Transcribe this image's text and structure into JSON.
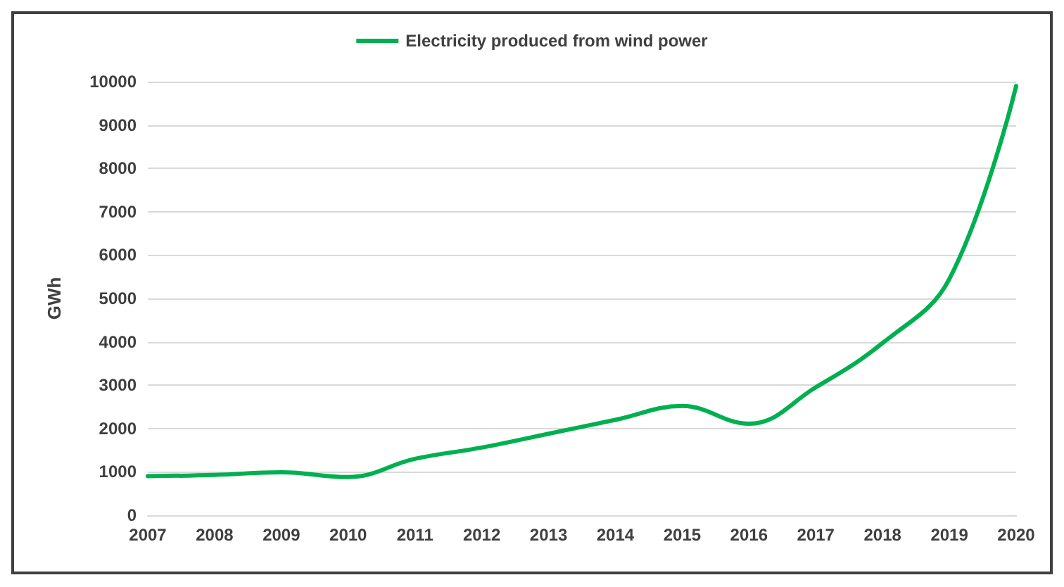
{
  "chart_data": {
    "type": "line",
    "ylabel": "GWh",
    "categories": [
      "2007",
      "2008",
      "2009",
      "2010",
      "2011",
      "2012",
      "2013",
      "2014",
      "2015",
      "2016",
      "2017",
      "2018",
      "2019",
      "2020"
    ],
    "series": [
      {
        "name": "Electricity produced from wind power",
        "color": "#00b050",
        "values": [
          900,
          930,
          990,
          880,
          1300,
          1560,
          1880,
          2200,
          2520,
          2110,
          2950,
          3970,
          5450,
          9900
        ]
      }
    ],
    "ylim": [
      0,
      10000
    ],
    "yticks": [
      0,
      1000,
      2000,
      3000,
      4000,
      5000,
      6000,
      7000,
      8000,
      9000,
      10000
    ],
    "grid": "y",
    "legend": "top",
    "marker": "none",
    "line_style": "solid"
  }
}
